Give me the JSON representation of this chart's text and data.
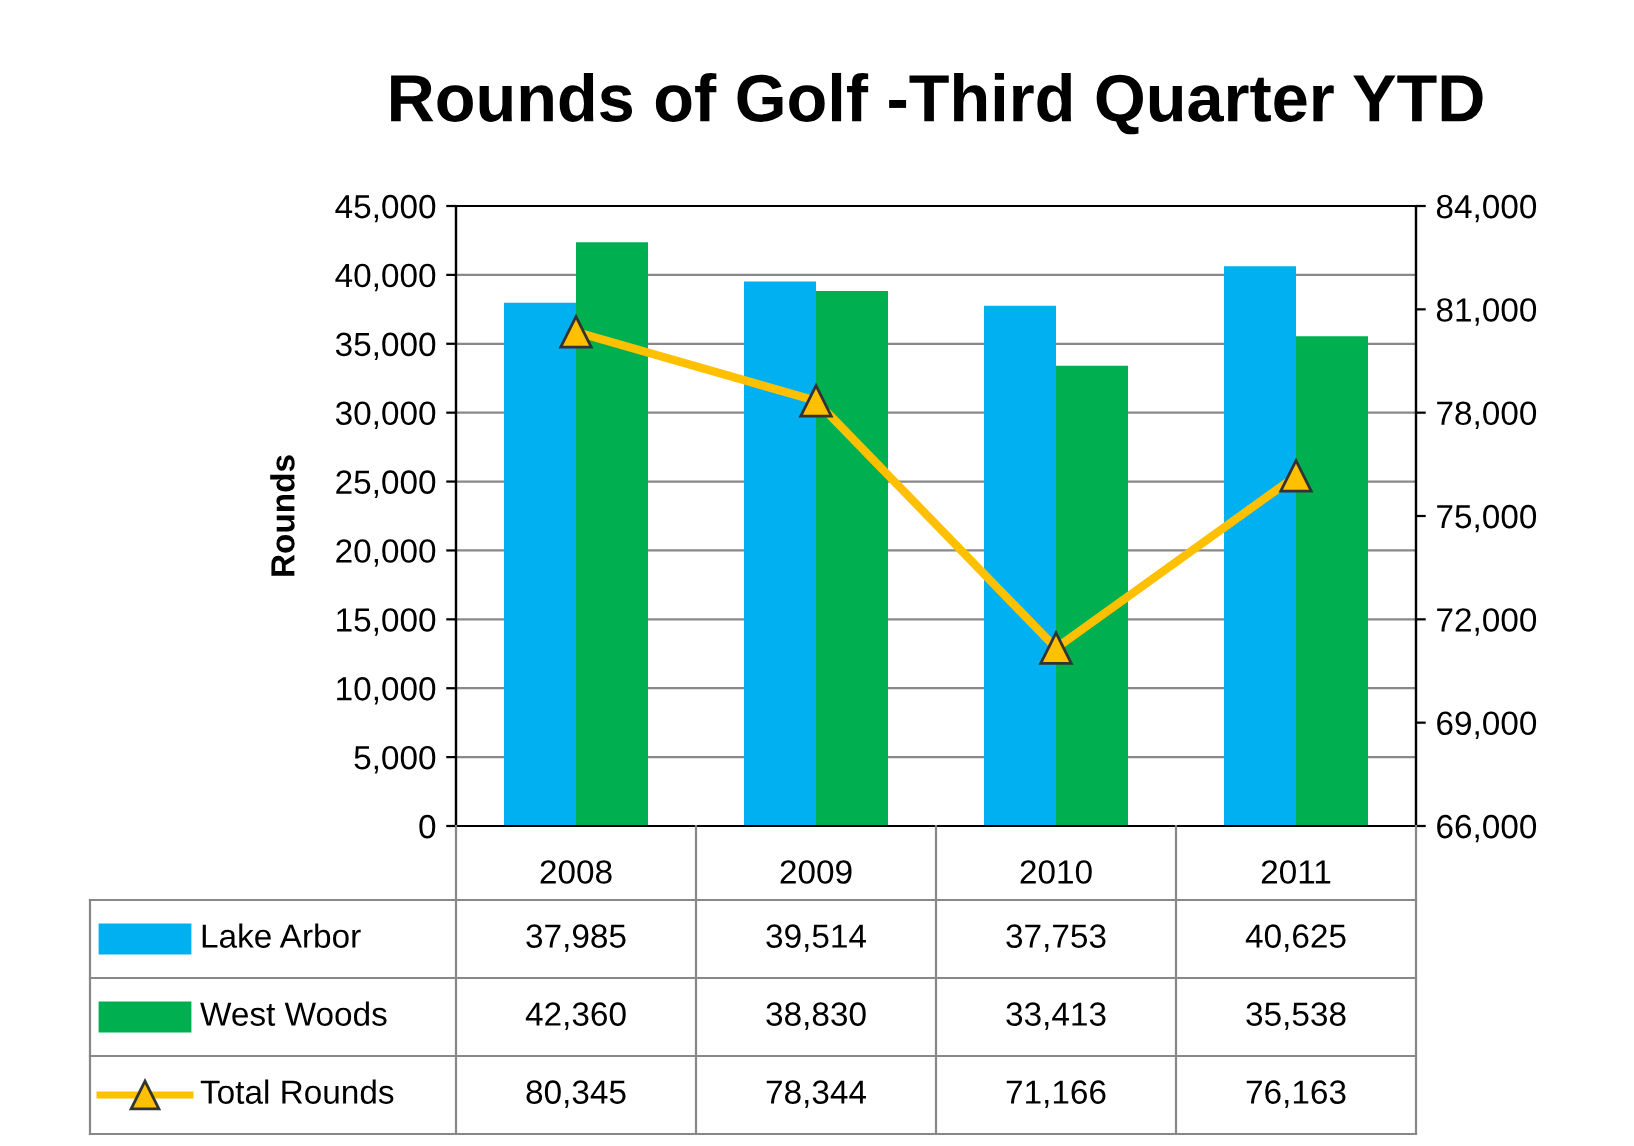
{
  "chart_data": {
    "type": "bar",
    "title": "Rounds of Golf -Third Quarter YTD",
    "ylabel": "Rounds",
    "categories": [
      "2008",
      "2009",
      "2010",
      "2011"
    ],
    "series": [
      {
        "name": "Lake Arbor",
        "color": "#00b0f0",
        "values": [
          37985,
          39514,
          37753,
          40625
        ],
        "value_labels": [
          "37,985",
          "39,514",
          "37,753",
          "40,625"
        ]
      },
      {
        "name": "West Woods",
        "color": "#00b050",
        "values": [
          42360,
          38830,
          33413,
          35538
        ],
        "value_labels": [
          "42,360",
          "38,830",
          "33,413",
          "35,538"
        ]
      },
      {
        "name": "Total Rounds",
        "type": "line",
        "axis": "y2",
        "color": "#ffc000",
        "marker": "triangle",
        "line_style": "solid",
        "values": [
          80345,
          78344,
          71166,
          76163
        ],
        "value_labels": [
          "80,345",
          "78,344",
          "71,166",
          "76,163"
        ]
      }
    ],
    "ylim": [
      0,
      45000
    ],
    "yticks": [
      {
        "value": 0,
        "label": "0"
      },
      {
        "value": 5000,
        "label": "5,000"
      },
      {
        "value": 10000,
        "label": "10,000"
      },
      {
        "value": 15000,
        "label": "15,000"
      },
      {
        "value": 20000,
        "label": "20,000"
      },
      {
        "value": 25000,
        "label": "25,000"
      },
      {
        "value": 30000,
        "label": "30,000"
      },
      {
        "value": 35000,
        "label": "35,000"
      },
      {
        "value": 40000,
        "label": "40,000"
      },
      {
        "value": 45000,
        "label": "45,000"
      }
    ],
    "y2lim": [
      66000,
      84000
    ],
    "y2ticks": [
      {
        "value": 66000,
        "label": "66,000"
      },
      {
        "value": 69000,
        "label": "69,000"
      },
      {
        "value": 72000,
        "label": "72,000"
      },
      {
        "value": 75000,
        "label": "75,000"
      },
      {
        "value": 78000,
        "label": "78,000"
      },
      {
        "value": 81000,
        "label": "81,000"
      },
      {
        "value": 84000,
        "label": "84,000"
      }
    ],
    "grid": "y",
    "legend": "bottom"
  }
}
